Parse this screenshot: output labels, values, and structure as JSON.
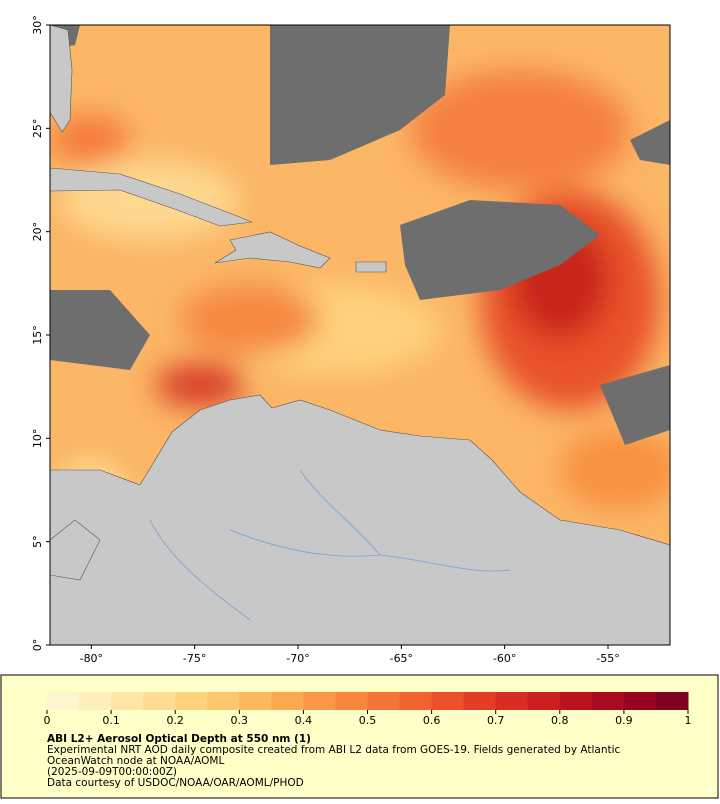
{
  "map": {
    "xlim": [
      -82,
      -52
    ],
    "ylim": [
      0,
      30
    ],
    "xticks": [
      {
        "value": -80,
        "label": "-80°"
      },
      {
        "value": -75,
        "label": "-75°"
      },
      {
        "value": -70,
        "label": "-70°"
      },
      {
        "value": -65,
        "label": "-65°"
      },
      {
        "value": -60,
        "label": "-60°"
      },
      {
        "value": -55,
        "label": "-55°"
      }
    ],
    "yticks": [
      {
        "value": 0,
        "label": "0°"
      },
      {
        "value": 5,
        "label": "5°"
      },
      {
        "value": 10,
        "label": "10°"
      },
      {
        "value": 15,
        "label": "15°"
      },
      {
        "value": 20,
        "label": "20°"
      },
      {
        "value": 25,
        "label": "25°"
      },
      {
        "value": 30,
        "label": "30°"
      }
    ]
  },
  "colorbar": {
    "lim": [
      0,
      1
    ],
    "ticks": [
      0,
      0.1,
      0.2,
      0.3,
      0.4,
      0.5,
      0.6,
      0.7,
      0.8,
      0.9,
      1
    ],
    "colors": [
      "#fff5cf",
      "#ffefbc",
      "#ffe6a6",
      "#fedd92",
      "#fed27e",
      "#fec66d",
      "#fdb85e",
      "#fca951",
      "#fb9747",
      "#f9863f",
      "#f67437",
      "#f26230",
      "#ec4f2a",
      "#e43d25",
      "#d92c22",
      "#cc1e20",
      "#bb121f",
      "#a80a20",
      "#960421",
      "#820023"
    ]
  },
  "caption": {
    "title": "ABI L2+ Aerosol Optical Depth at 550 nm (1)",
    "lines": [
      "Experimental NRT AOD daily composite created from ABI L2 data from GOES-19. Fields generated by Atlantic",
      "OceanWatch node at NOAA/AOML",
      "(2025-09-09T00:00:00Z)",
      "Data courtesy of USDOC/NOAA/OAR/AOML/PHOD"
    ]
  }
}
